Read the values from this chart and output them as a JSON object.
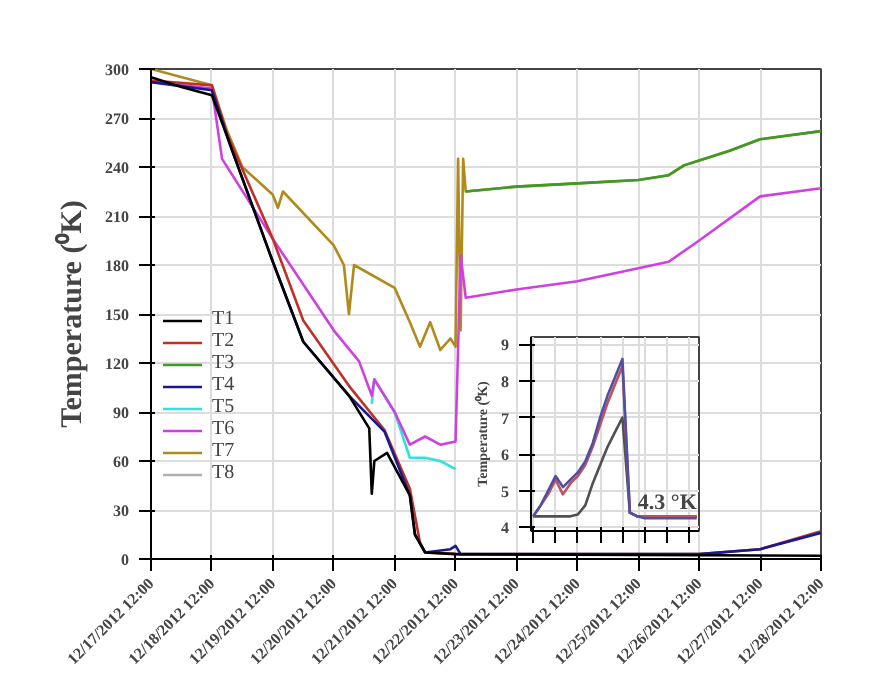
{
  "chart_data": [
    {
      "type": "line",
      "ylabel": "Temperature (⁰K)",
      "ylim": [
        0,
        300
      ],
      "yticks": [
        0,
        30,
        60,
        90,
        120,
        150,
        180,
        210,
        240,
        270,
        300
      ],
      "xlim": [
        "2012-12-17T12:00",
        "2012-12-28T12:00"
      ],
      "xticks": [
        {
          "value": "2012-12-17T12:00",
          "label": "12/17/2012 12:00"
        },
        {
          "value": "2012-12-18T12:00",
          "label": "12/18/2012 12:00"
        },
        {
          "value": "2012-12-19T12:00",
          "label": "12/19/2012 12:00"
        },
        {
          "value": "2012-12-20T12:00",
          "label": "12/20/2012 12:00"
        },
        {
          "value": "2012-12-21T12:00",
          "label": "12/21/2012 12:00"
        },
        {
          "value": "2012-12-22T12:00",
          "label": "12/22/2012 12:00"
        },
        {
          "value": "2012-12-23T12:00",
          "label": "12/23/2012 12:00"
        },
        {
          "value": "2012-12-24T12:00",
          "label": "12/24/2012 12:00"
        },
        {
          "value": "2012-12-25T12:00",
          "label": "12/25/2012 12:00"
        },
        {
          "value": "2012-12-26T12:00",
          "label": "12/26/2012 12:00"
        },
        {
          "value": "2012-12-27T12:00",
          "label": "12/27/2012 12:00"
        },
        {
          "value": "2012-12-28T12:00",
          "label": "12/28/2012 12:00"
        }
      ],
      "grid": true,
      "legend": "left",
      "series": [
        {
          "name": "T7",
          "color": "#b08a1b",
          "x": [
            "2012-12-17T12:00",
            "2012-12-18T12:00",
            "2012-12-18T18:00",
            "2012-12-19T00:00",
            "2012-12-19T12:00",
            "2012-12-19T14:00",
            "2012-12-19T16:00",
            "2012-12-20T12:00",
            "2012-12-20T16:00",
            "2012-12-20T18:00",
            "2012-12-20T20:00",
            "2012-12-21T12:00",
            "2012-12-21T18:00",
            "2012-12-21T22:00",
            "2012-12-22T02:00",
            "2012-12-22T06:00",
            "2012-12-22T10:00",
            "2012-12-22T12:00",
            "2012-12-22T13:00",
            "2012-12-22T14:00",
            "2012-12-22T15:00",
            "2012-12-22T16:00",
            "2012-12-23T12:00",
            "2012-12-24T12:00",
            "2012-12-25T12:00",
            "2012-12-26T00:00",
            "2012-12-26T06:00",
            "2012-12-26T12:00",
            "2012-12-27T00:00",
            "2012-12-27T12:00",
            "2012-12-28T12:00"
          ],
          "values": [
            300,
            290,
            262,
            240,
            223,
            215,
            225,
            192,
            180,
            150,
            180,
            166,
            145,
            130,
            145,
            128,
            135,
            130,
            245,
            140,
            245,
            225,
            228,
            230,
            232,
            235,
            241,
            244,
            250,
            257,
            262
          ]
        },
        {
          "name": "T3",
          "color": "#3e9a2a",
          "x": [
            "2012-12-22T16:00",
            "2012-12-23T12:00",
            "2012-12-24T12:00",
            "2012-12-25T12:00",
            "2012-12-26T00:00",
            "2012-12-26T06:00",
            "2012-12-26T12:00",
            "2012-12-27T00:00",
            "2012-12-27T12:00",
            "2012-12-28T12:00"
          ],
          "values": [
            225,
            228,
            230,
            232,
            235,
            241,
            244,
            250,
            257,
            262
          ]
        },
        {
          "name": "T5",
          "color": "#33e0e0",
          "x": [
            "2012-12-21T03:00",
            "2012-12-21T04:00",
            "2012-12-21T12:00",
            "2012-12-21T18:00",
            "2012-12-22T00:00",
            "2012-12-22T06:00",
            "2012-12-22T12:00"
          ],
          "values": [
            95,
            110,
            90,
            62,
            62,
            60,
            55
          ]
        },
        {
          "name": "T6",
          "color": "#d040e0",
          "x": [
            "2012-12-17T12:00",
            "2012-12-18T12:00",
            "2012-12-18T16:00",
            "2012-12-19T12:00",
            "2012-12-20T12:00",
            "2012-12-20T22:00",
            "2012-12-21T03:00",
            "2012-12-21T04:00",
            "2012-12-21T12:00",
            "2012-12-21T18:00",
            "2012-12-22T00:00",
            "2012-12-22T06:00",
            "2012-12-22T12:00",
            "2012-12-22T14:00",
            "2012-12-22T16:00",
            "2012-12-23T12:00",
            "2012-12-24T12:00",
            "2012-12-25T12:00",
            "2012-12-26T00:00",
            "2012-12-26T12:00",
            "2012-12-27T12:00",
            "2012-12-28T12:00"
          ],
          "values": [
            292,
            288,
            245,
            196,
            140,
            121,
            100,
            110,
            90,
            70,
            75,
            70,
            72,
            186,
            160,
            165,
            170,
            178,
            182,
            195,
            222,
            227
          ]
        },
        {
          "name": "T2",
          "color": "#c0302b",
          "x": [
            "2012-12-17T12:00",
            "2012-12-18T12:00",
            "2012-12-18T18:00",
            "2012-12-19T12:00",
            "2012-12-20T00:00",
            "2012-12-20T18:00",
            "2012-12-21T08:00",
            "2012-12-21T18:00",
            "2012-12-21T22:00",
            "2012-12-22T00:00",
            "2012-12-22T14:00",
            "2012-12-26T12:00",
            "2012-12-27T12:00",
            "2012-12-28T12:00"
          ],
          "values": [
            293,
            290,
            260,
            196,
            146,
            106,
            79,
            43,
            10,
            4,
            3,
            3,
            6,
            17
          ]
        },
        {
          "name": "T4",
          "color": "#1a1a8c",
          "x": [
            "2012-12-17T12:00",
            "2012-12-18T12:00",
            "2012-12-18T20:00",
            "2012-12-19T12:00",
            "2012-12-20T00:00",
            "2012-12-20T18:00",
            "2012-12-21T08:00",
            "2012-12-21T18:00",
            "2012-12-21T20:00",
            "2012-12-22T00:00",
            "2012-12-22T10:00",
            "2012-12-22T12:00",
            "2012-12-22T14:00",
            "2012-12-26T12:00",
            "2012-12-27T12:00",
            "2012-12-28T12:00"
          ],
          "values": [
            292,
            287,
            250,
            182,
            133,
            100,
            78,
            39,
            15,
            4,
            6,
            8,
            3,
            3,
            6,
            16
          ]
        },
        {
          "name": "T1",
          "color": "#000000",
          "x": [
            "2012-12-17T12:00",
            "2012-12-18T00:00",
            "2012-12-18T12:00",
            "2012-12-18T20:00",
            "2012-12-19T12:00",
            "2012-12-20T00:00",
            "2012-12-20T18:00",
            "2012-12-21T02:00",
            "2012-12-21T03:00",
            "2012-12-21T04:00",
            "2012-12-21T09:00",
            "2012-12-21T18:00",
            "2012-12-21T20:00",
            "2012-12-22T00:00",
            "2012-12-22T12:00",
            "2012-12-28T12:00"
          ],
          "values": [
            295,
            289,
            284,
            250,
            182,
            133,
            100,
            80,
            40,
            60,
            65,
            39,
            15,
            4,
            3,
            2
          ]
        },
        {
          "name": "T8",
          "color": "#b0b0b0"
        }
      ]
    },
    {
      "type": "line",
      "ylabel": "Temperature (⁰K)",
      "ylim": [
        3.9,
        9.2
      ],
      "yticks": [
        4,
        5,
        6,
        7,
        8,
        9
      ],
      "grid": true,
      "tick_labels": "y",
      "annotations": [
        "4.3 °K"
      ],
      "categories": [
        null,
        null,
        null,
        null,
        null,
        null,
        null,
        null,
        null,
        null,
        null,
        null,
        null,
        null,
        null,
        null,
        null,
        null,
        null,
        null,
        null,
        null,
        null
      ],
      "series": [
        {
          "color": "#505050",
          "values": [
            4.3,
            4.3,
            4.3,
            4.3,
            4.3,
            4.3,
            4.35,
            4.6,
            5.2,
            5.7,
            6.2,
            6.6,
            7.0,
            4.4,
            4.3,
            4.3,
            4.3,
            4.3,
            4.3,
            4.3,
            4.3,
            4.3,
            4.3
          ]
        },
        {
          "color": "#c05060",
          "values": [
            4.3,
            4.6,
            4.9,
            5.3,
            4.9,
            5.2,
            5.4,
            5.7,
            6.2,
            6.8,
            7.4,
            7.9,
            8.4,
            4.4,
            4.3,
            4.3,
            4.3,
            4.3,
            4.3,
            4.3,
            4.3,
            4.3,
            4.3
          ]
        },
        {
          "color": "#5050a0",
          "values": [
            4.3,
            4.6,
            5.0,
            5.4,
            5.1,
            5.3,
            5.5,
            5.8,
            6.3,
            7.0,
            7.6,
            8.1,
            8.6,
            4.4,
            4.3,
            4.25,
            4.25,
            4.25,
            4.25,
            4.25,
            4.25,
            4.25,
            4.25
          ]
        }
      ]
    }
  ]
}
